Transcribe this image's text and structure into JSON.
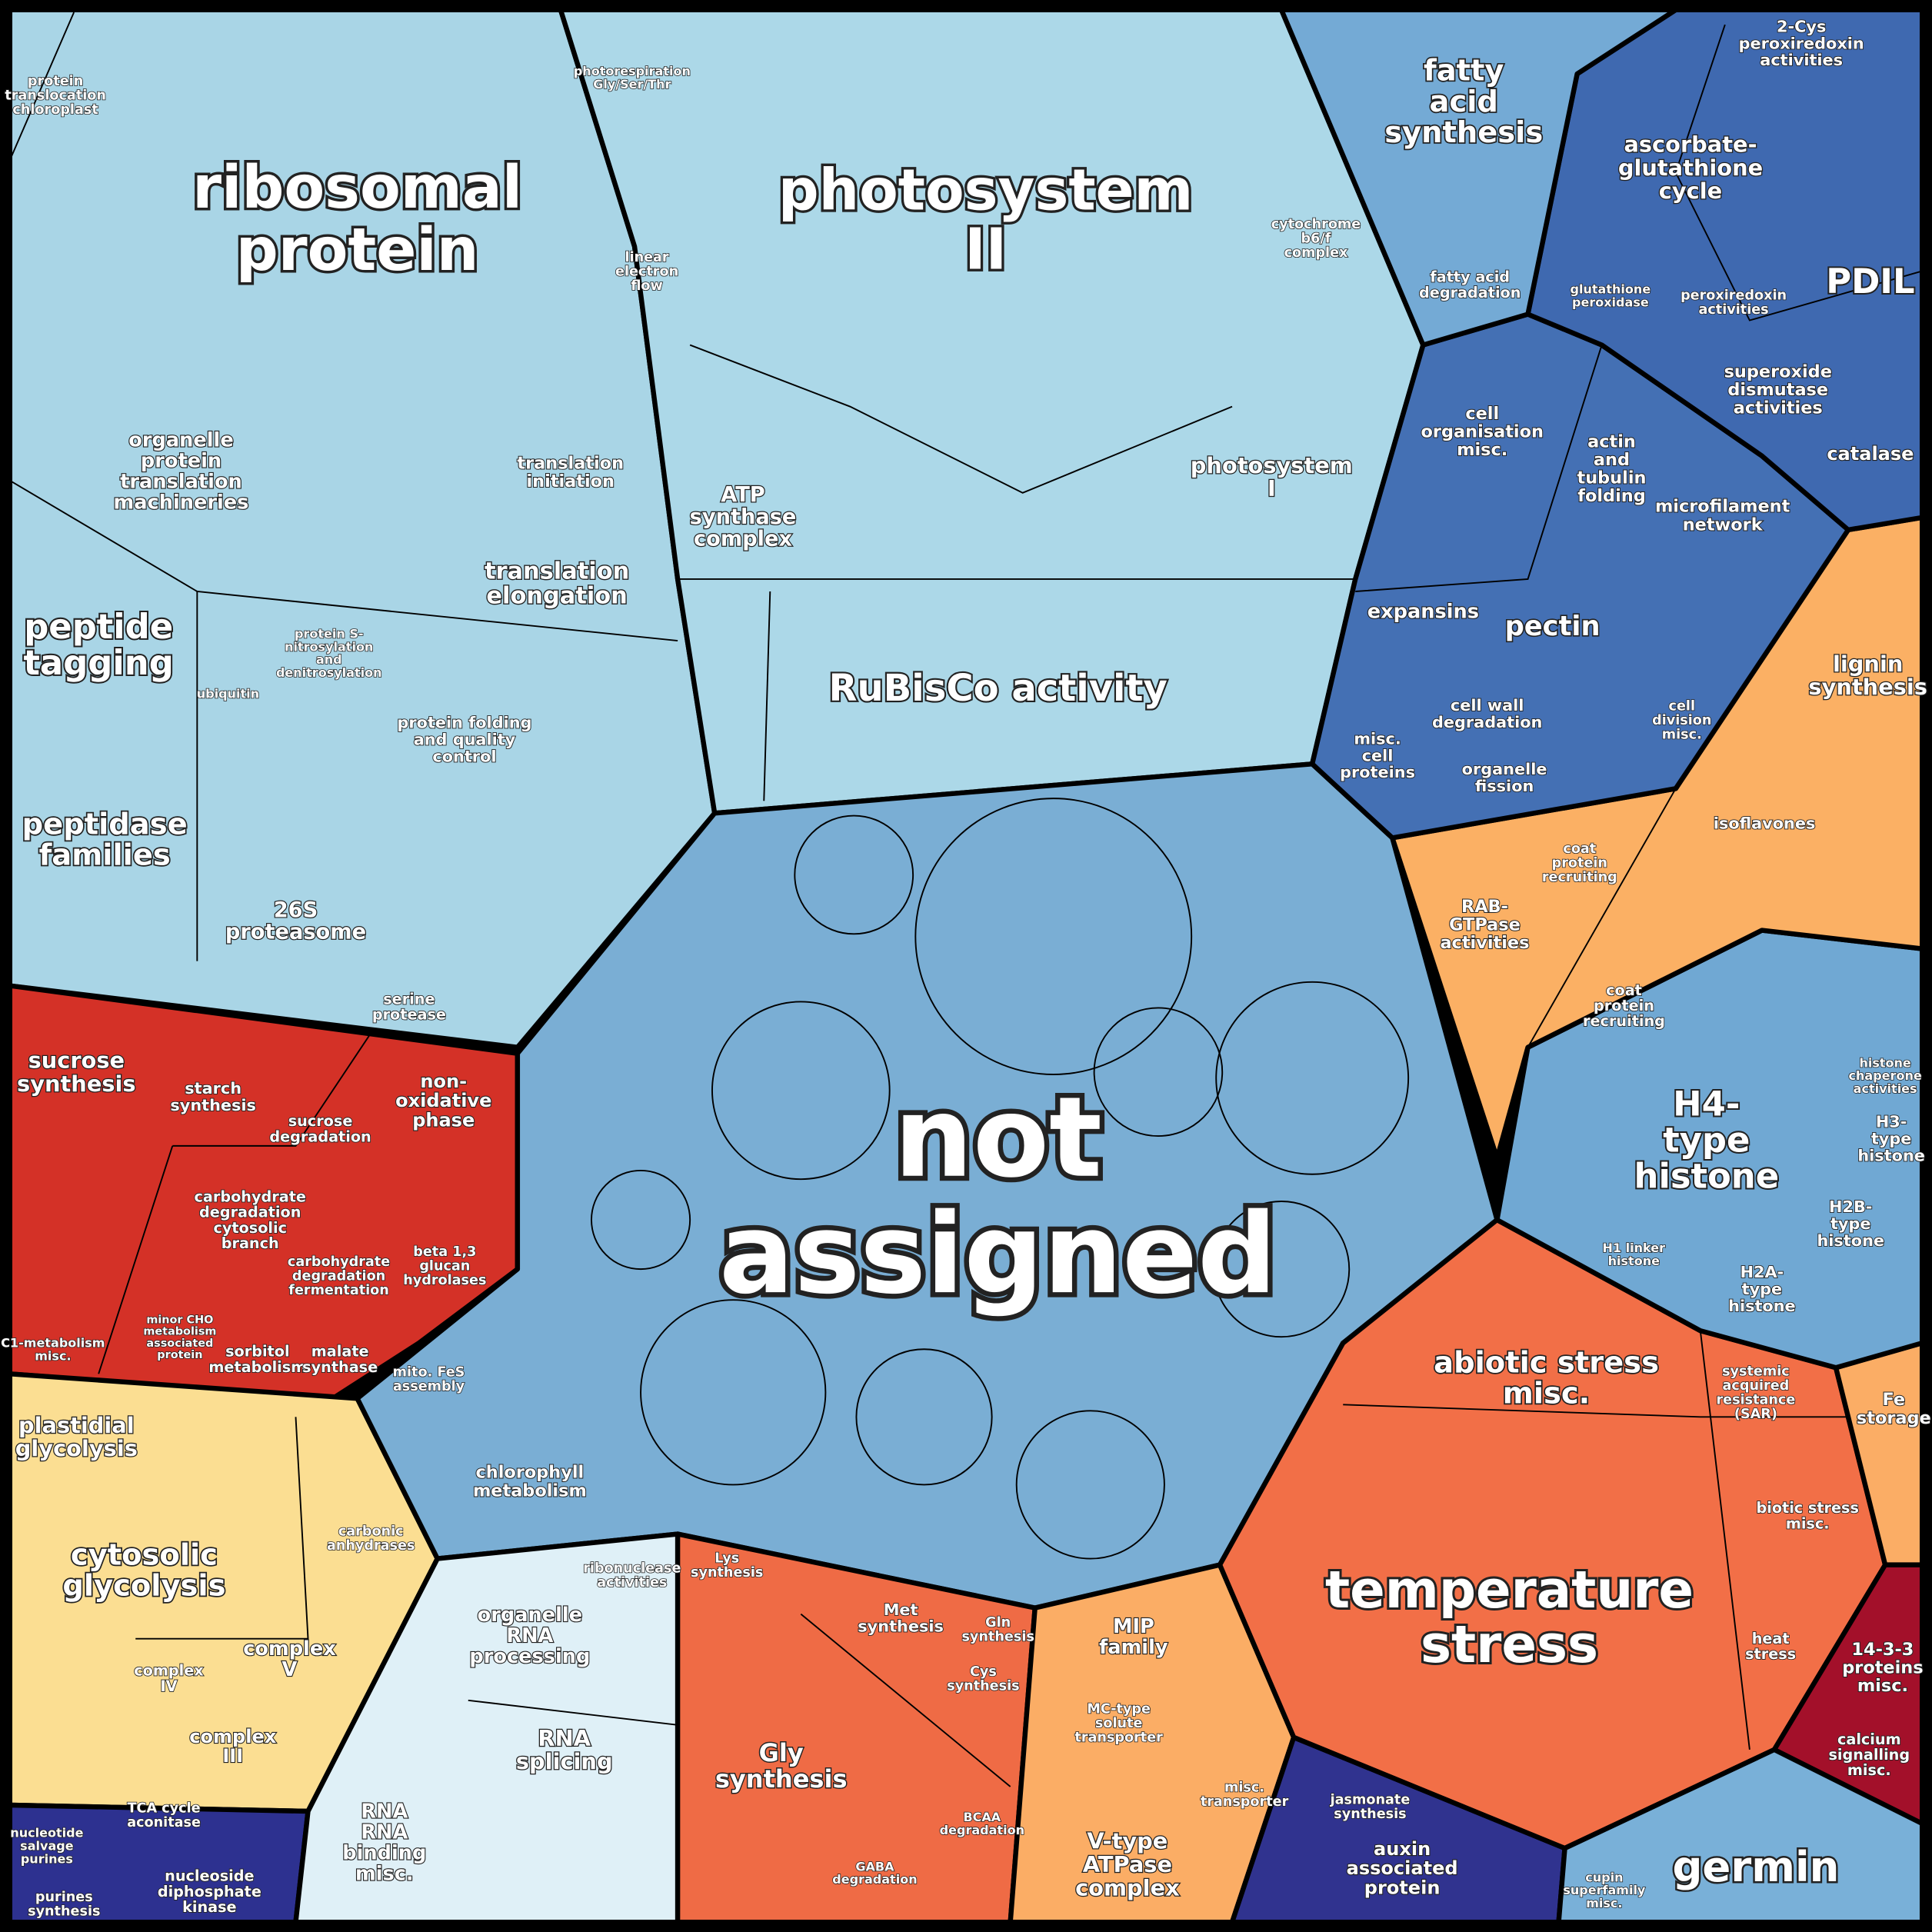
{
  "cells": [
    {
      "lines": [
        "ribosomal",
        "protein"
      ]
    },
    {
      "lines": [
        "photosystem",
        "II"
      ]
    },
    {
      "lines": [
        "not",
        "assigned"
      ]
    },
    {
      "lines": [
        "temperature",
        "stress"
      ]
    },
    {
      "lines": [
        "RuBisCo activity"
      ]
    },
    {
      "lines": [
        "fatty",
        "acid",
        "synthesis"
      ]
    },
    {
      "lines": [
        "ascorbate-",
        "glutathione",
        "cycle"
      ]
    },
    {
      "lines": [
        "PDIL"
      ]
    },
    {
      "lines": [
        "2-Cys",
        "peroxiredoxin",
        "activities"
      ]
    },
    {
      "lines": [
        "superoxide",
        "dismutase",
        "activities"
      ]
    },
    {
      "lines": [
        "catalase"
      ]
    },
    {
      "lines": [
        "cell",
        "organisation",
        "misc."
      ]
    },
    {
      "lines": [
        "actin",
        "and",
        "tubulin",
        "folding"
      ]
    },
    {
      "lines": [
        "microfilament",
        "network"
      ]
    },
    {
      "lines": [
        "expansins"
      ]
    },
    {
      "lines": [
        "pectin"
      ]
    },
    {
      "lines": [
        "cell wall",
        "degradation"
      ]
    },
    {
      "lines": [
        "misc.",
        "cell",
        "proteins"
      ]
    },
    {
      "lines": [
        "organelle",
        "fission"
      ]
    },
    {
      "lines": [
        "cell",
        "division",
        "misc."
      ]
    },
    {
      "lines": [
        "lignin",
        "synthesis"
      ]
    },
    {
      "lines": [
        "isoflavones"
      ]
    },
    {
      "lines": [
        "RAB-",
        "GTPase",
        "activities"
      ]
    },
    {
      "lines": [
        "coat",
        "protein",
        "recruiting"
      ]
    },
    {
      "lines": [
        "coat",
        "protein",
        "recruiting"
      ]
    },
    {
      "lines": [
        "H4-",
        "type",
        "histone"
      ]
    },
    {
      "lines": [
        "H3-",
        "type",
        "histone"
      ]
    },
    {
      "lines": [
        "H2B-",
        "type",
        "histone"
      ]
    },
    {
      "lines": [
        "H2A-",
        "type",
        "histone"
      ]
    },
    {
      "lines": [
        "H1 linker",
        "histone"
      ]
    },
    {
      "lines": [
        "histone",
        "chaperone",
        "activities"
      ]
    },
    {
      "lines": [
        "abiotic stress",
        "misc."
      ]
    },
    {
      "lines": [
        "systemic",
        "acquired",
        "resistance",
        "(SAR)"
      ]
    },
    {
      "lines": [
        "biotic stress",
        "misc."
      ]
    },
    {
      "lines": [
        "heat",
        "stress"
      ]
    },
    {
      "lines": [
        "Fe",
        "storage"
      ]
    },
    {
      "lines": [
        "14-3-3",
        "proteins",
        "misc."
      ]
    },
    {
      "lines": [
        "calcium",
        "signalling",
        "misc."
      ]
    },
    {
      "lines": [
        "germin"
      ]
    },
    {
      "lines": [
        "cupin",
        "superfamily",
        "misc."
      ]
    },
    {
      "lines": [
        "jasmonate",
        "synthesis"
      ]
    },
    {
      "lines": [
        "auxin",
        "associated",
        "protein"
      ]
    },
    {
      "lines": [
        "V-type",
        "ATPase",
        "complex"
      ]
    },
    {
      "lines": [
        "MIP",
        "family"
      ]
    },
    {
      "lines": [
        "MC-type",
        "solute",
        "transporter"
      ]
    },
    {
      "lines": [
        "misc.",
        "transporter"
      ]
    },
    {
      "lines": [
        "Gly",
        "synthesis"
      ]
    },
    {
      "lines": [
        "Met",
        "synthesis"
      ]
    },
    {
      "lines": [
        "Gln",
        "synthesis"
      ]
    },
    {
      "lines": [
        "Cys",
        "synthesis"
      ]
    },
    {
      "lines": [
        "BCAA",
        "degradation"
      ]
    },
    {
      "lines": [
        "GABA",
        "degradation"
      ]
    },
    {
      "lines": [
        "Lys",
        "synthesis"
      ]
    },
    {
      "lines": [
        "organelle",
        "RNA",
        "processing"
      ]
    },
    {
      "lines": [
        "RNA",
        "splicing"
      ]
    },
    {
      "lines": [
        "RNA",
        "RNA",
        "binding",
        "misc."
      ]
    },
    {
      "lines": [
        "ribonuclease",
        "activities"
      ]
    },
    {
      "lines": [
        "cytosolic",
        "glycolysis"
      ]
    },
    {
      "lines": [
        "plastidial",
        "glycolysis"
      ]
    },
    {
      "lines": [
        "complex",
        "V"
      ]
    },
    {
      "lines": [
        "complex",
        "IV"
      ]
    },
    {
      "lines": [
        "complex",
        "III"
      ]
    },
    {
      "lines": [
        "carbonic",
        "anhydrases"
      ]
    },
    {
      "lines": [
        "TCA cycle",
        "aconitase"
      ]
    },
    {
      "lines": [
        "nucleoside",
        "diphosphate",
        "kinase"
      ]
    },
    {
      "lines": [
        "nucleotide",
        "salvage",
        "purines"
      ]
    },
    {
      "lines": [
        "purines",
        "synthesis"
      ]
    },
    {
      "lines": [
        "chlorophyll",
        "metabolism"
      ]
    },
    {
      "lines": [
        "mito. FeS",
        "assembly"
      ]
    },
    {
      "lines": [
        "sucrose",
        "synthesis"
      ]
    },
    {
      "lines": [
        "starch",
        "synthesis"
      ]
    },
    {
      "lines": [
        "non-",
        "oxidative",
        "phase"
      ]
    },
    {
      "lines": [
        "sucrose",
        "degradation"
      ]
    },
    {
      "lines": [
        "carbohydrate",
        "degradation",
        "cytosolic",
        "branch"
      ]
    },
    {
      "lines": [
        "carbohydrate",
        "degradation",
        "fermentation"
      ]
    },
    {
      "lines": [
        "beta 1,3",
        "glucan",
        "hydrolases"
      ]
    },
    {
      "lines": [
        "minor CHO",
        "metabolism",
        "associated",
        "protein"
      ]
    },
    {
      "lines": [
        "sorbitol",
        "metabolism"
      ]
    },
    {
      "lines": [
        "malate",
        "synthase"
      ]
    },
    {
      "lines": [
        "C1-metabolism",
        "misc."
      ]
    },
    {
      "lines": [
        "peptide",
        "tagging"
      ]
    },
    {
      "lines": [
        "peptidase",
        "families"
      ]
    },
    {
      "lines": [
        "26S",
        "proteasome"
      ]
    },
    {
      "lines": [
        "organelle",
        "protein",
        "translation",
        "machineries"
      ]
    },
    {
      "lines": [
        "translation",
        "initiation"
      ]
    },
    {
      "lines": [
        "translation",
        "elongation"
      ]
    },
    {
      "lines": [
        "protein folding",
        "and quality",
        "control"
      ]
    },
    {
      "lines": [
        "serine",
        "protease"
      ]
    },
    {
      "lines": [
        "ATP",
        "synthase",
        "complex"
      ]
    },
    {
      "lines": [
        "photosystem",
        "I"
      ]
    },
    {
      "lines": [
        "linear",
        "electron",
        "flow"
      ]
    },
    {
      "lines": [
        "cytochrome",
        "b6/f",
        "complex"
      ]
    },
    {
      "lines": [
        "fatty acid",
        "degradation"
      ]
    },
    {
      "lines": [
        "glutathione",
        "peroxidase"
      ]
    },
    {
      "lines": [
        "peroxiredoxin",
        "activities"
      ]
    },
    {
      "lines": [
        "protein",
        "translocation",
        "chloroplast"
      ]
    },
    {
      "lines": [
        "ubiquitin"
      ]
    },
    {
      "lines": [
        "photorespiration",
        "Gly/Ser/Thr"
      ]
    },
    {
      "lines": [
        "protein S-",
        "nitrosylation",
        "and",
        "denitrosylation"
      ]
    }
  ]
}
